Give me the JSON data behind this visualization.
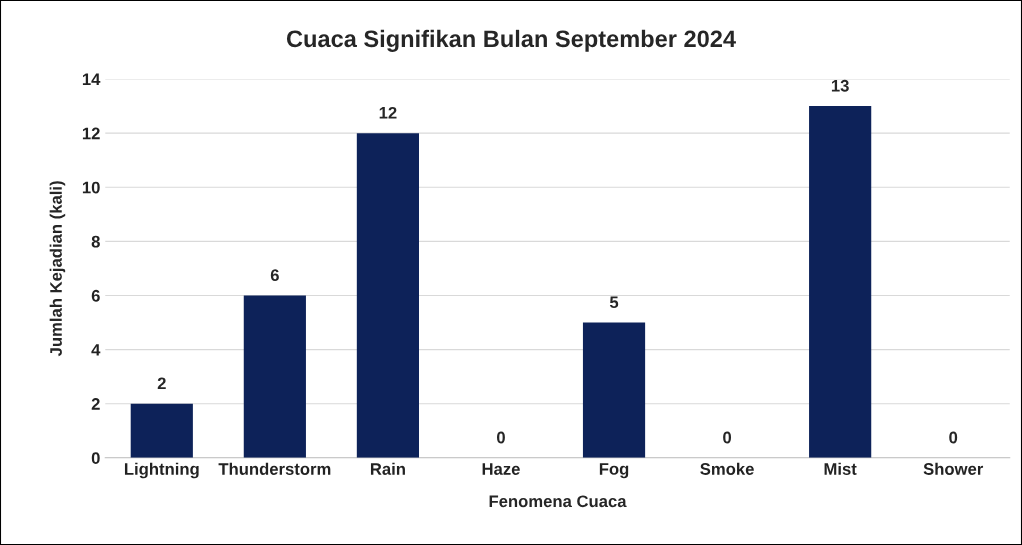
{
  "chart_data": {
    "type": "bar",
    "title": "Cuaca Signifikan Bulan September 2024",
    "xlabel": "Fenomena Cuaca",
    "ylabel": "Jumlah Kejadian (kali)",
    "categories": [
      "Lightning",
      "Thunderstorm",
      "Rain",
      "Haze",
      "Fog",
      "Smoke",
      "Mist",
      "Shower"
    ],
    "values": [
      2,
      6,
      12,
      0,
      5,
      0,
      13,
      0
    ],
    "color": "#0d2259",
    "ylim": [
      0,
      14
    ],
    "yticks": [
      0,
      2,
      4,
      6,
      8,
      10,
      12,
      14
    ],
    "grid": "y",
    "data_labels": true,
    "legend": false
  }
}
